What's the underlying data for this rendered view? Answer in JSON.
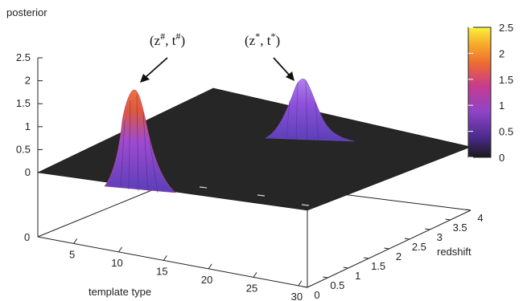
{
  "chart_data": {
    "type": "surface",
    "zlabel": "posterior",
    "xlabel": "template type",
    "ylabel": "redshift",
    "zlim": [
      0,
      2.5
    ],
    "z_ticks": [
      "0",
      "0.5",
      "1",
      "1.5",
      "2",
      "2.5"
    ],
    "x_ticks": [
      "5",
      "10",
      "15",
      "20",
      "25",
      "30"
    ],
    "y_ticks": [
      "0",
      "0.5",
      "1",
      "1.5",
      "2",
      "2.5",
      "3",
      "3.5",
      "4"
    ],
    "floor_tick": "0",
    "colorbar": {
      "range": [
        0,
        2.5
      ],
      "ticks": [
        "0",
        "0.5",
        "1",
        "1.5",
        "2",
        "2.5"
      ],
      "colors": [
        "#1a1a1a",
        "#5b2a9e",
        "#9b44c8",
        "#d03a8a",
        "#f06a30",
        "#f7b32a",
        "#f8f23c"
      ]
    },
    "peaks": [
      {
        "label_main": "(z",
        "label_sup1": "#",
        "label_mid": ", t",
        "label_sup2": "#",
        "label_end": ")",
        "template": 10,
        "redshift": 0.4,
        "height": 1.8,
        "color": "#e0583a"
      },
      {
        "label_main": "(z",
        "label_sup1": "*",
        "label_mid": ", t",
        "label_sup2": "*",
        "label_end": ")",
        "template": 26,
        "redshift": 3.3,
        "height": 1.15,
        "color": "#9b4fd6"
      }
    ]
  }
}
